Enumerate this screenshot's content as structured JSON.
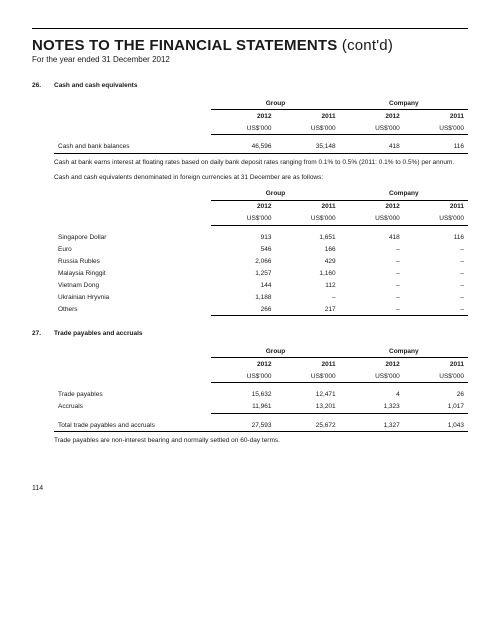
{
  "header": {
    "title_main": "NOTES TO THE FINANCIAL STATEMENTS",
    "title_cont": "(cont'd)",
    "subtitle": "For the year ended 31 December 2012"
  },
  "note26": {
    "num": "26.",
    "title": "Cash and cash equivalents",
    "group_label": "Group",
    "company_label": "Company",
    "yr1": "2012",
    "yr2": "2011",
    "unit": "US$'000",
    "row1": {
      "label": "Cash and bank balances",
      "g12": "46,596",
      "g11": "35,148",
      "c12": "418",
      "c11": "116"
    },
    "para1": "Cash at bank earns interest at floating rates based on daily bank deposit rates ranging from 0.1% to 0.5% (2011: 0.1% to 0.5%) per annum.",
    "para2": "Cash and cash equivalents denominated in foreign currencies at 31 December are as follows:",
    "rows_fx": [
      {
        "label": "Singapore Dollar",
        "g12": "913",
        "g11": "1,651",
        "c12": "418",
        "c11": "116"
      },
      {
        "label": "Euro",
        "g12": "546",
        "g11": "166",
        "c12": "–",
        "c11": "–"
      },
      {
        "label": "Russia Rubles",
        "g12": "2,066",
        "g11": "429",
        "c12": "–",
        "c11": "–"
      },
      {
        "label": "Malaysia Ringgit",
        "g12": "1,257",
        "g11": "1,160",
        "c12": "–",
        "c11": "–"
      },
      {
        "label": "Vietnam Dong",
        "g12": "144",
        "g11": "112",
        "c12": "–",
        "c11": "–"
      },
      {
        "label": "Ukrainian Hryvnia",
        "g12": "1,188",
        "g11": "–",
        "c12": "–",
        "c11": "–"
      },
      {
        "label": "Others",
        "g12": "266",
        "g11": "217",
        "c12": "–",
        "c11": "–"
      }
    ]
  },
  "note27": {
    "num": "27.",
    "title": "Trade payables and accruals",
    "group_label": "Group",
    "company_label": "Company",
    "yr1": "2012",
    "yr2": "2011",
    "unit": "US$'000",
    "rows": [
      {
        "label": "Trade payables",
        "g12": "15,632",
        "g11": "12,471",
        "c12": "4",
        "c11": "26"
      },
      {
        "label": "Accruals",
        "g12": "11,961",
        "g11": "13,201",
        "c12": "1,323",
        "c11": "1,017"
      }
    ],
    "total": {
      "label": "Total trade payables and accruals",
      "g12": "27,593",
      "g11": "25,672",
      "c12": "1,327",
      "c11": "1,043"
    },
    "para": "Trade payables are non-interest bearing and normally settled on 60-day terms."
  },
  "page_num": "114"
}
